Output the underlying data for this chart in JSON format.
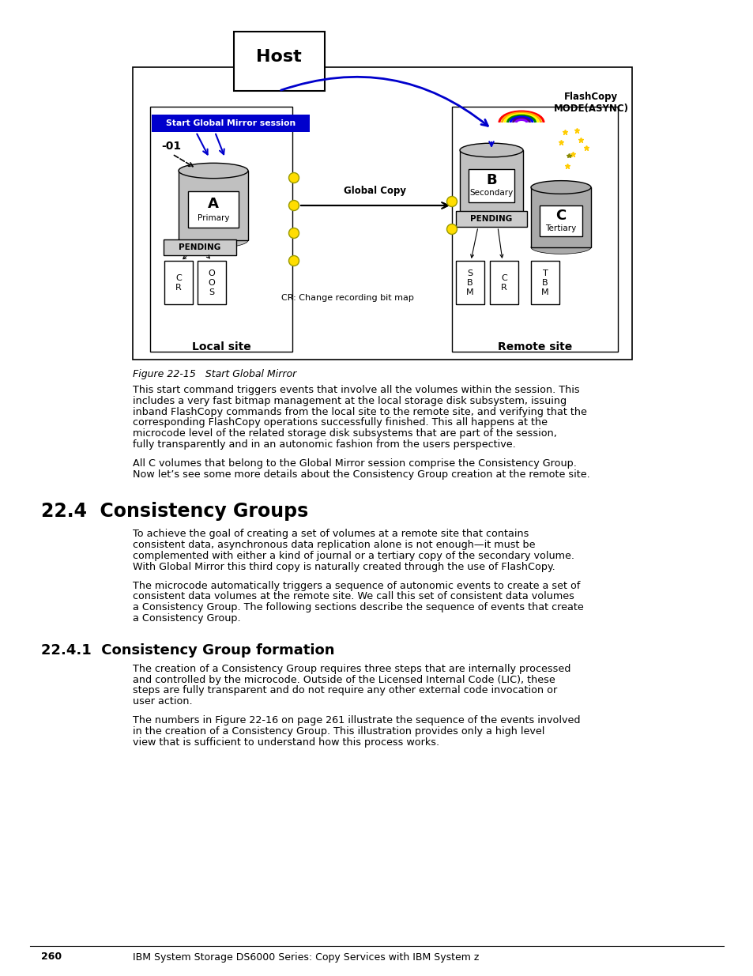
{
  "page_number": "260",
  "footer_text": "IBM System Storage DS6000 Series: Copy Services with IBM System z",
  "figure_caption": "Figure 22-15   Start Global Mirror",
  "section_title": "22.4  Consistency Groups",
  "subsection_title": "22.4.1  Consistency Group formation",
  "para1": "This start command triggers events that involve all the volumes within the session. This includes a very fast bitmap management at the local storage disk subsystem, issuing inband FlashCopy commands from the local site to the remote site, and verifying that the corresponding FlashCopy operations successfully finished. This all happens at the microcode level of the related storage disk subsystems that are part of the session, fully transparently and in an autonomic fashion from the users perspective.",
  "para2": "All C volumes that belong to the Global Mirror session comprise the Consistency Group. Now let’s see some more details about the Consistency Group creation at the remote site.",
  "para3": "To achieve the goal of creating a set of volumes at a remote site that contains consistent data, asynchronous data replication alone is not enough—it must be complemented with either a kind of journal or a tertiary copy of the secondary volume. With Global Mirror this third copy is naturally created through the use of FlashCopy.",
  "para4": "The microcode automatically triggers a sequence of autonomic events to create a set of consistent data volumes at the remote site. We call this set of consistent data volumes a Consistency Group. The following sections describe the sequence of events that create a Consistency Group.",
  "para5": "The creation of a Consistency Group requires three steps that are internally processed and controlled by the microcode. Outside of the Licensed Internal Code (LIC), these steps are fully transparent and do not require any other external code invocation or user action.",
  "para6": "The numbers in Figure 22-16 on page 261 illustrate the sequence of the events involved in the creation of a Consistency Group. This illustration provides only a high level view that is sufficient to understand how this process works.",
  "bg_color": "#ffffff",
  "blue_arrow_color": "#0000cc",
  "yellow_dot_color": "#ffdd00"
}
